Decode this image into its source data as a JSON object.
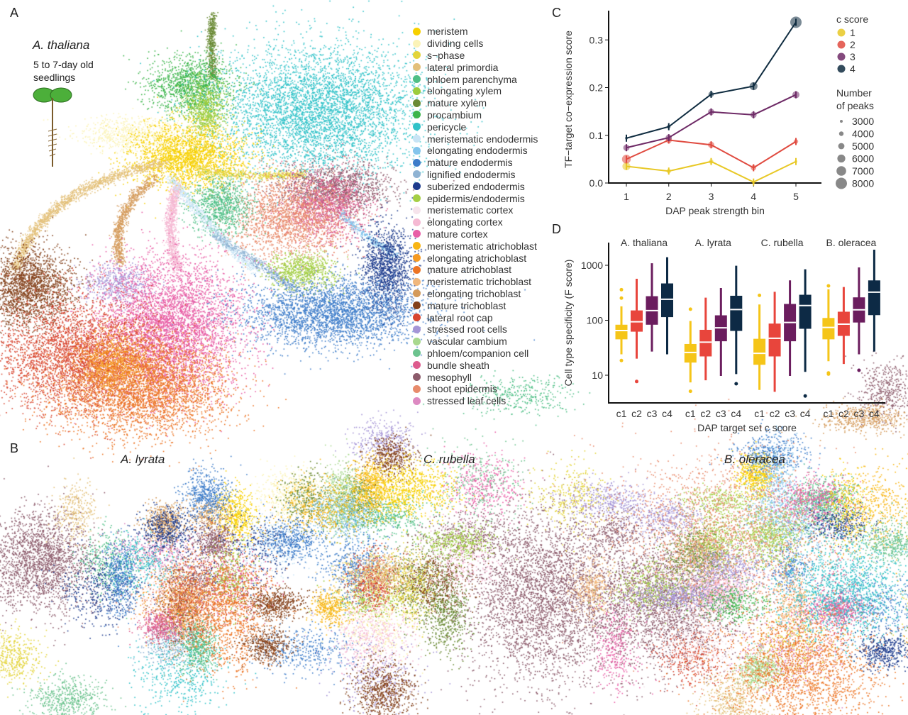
{
  "panel_labels": {
    "a": "A",
    "b": "B",
    "c": "C",
    "d": "D"
  },
  "panel_a": {
    "species": "A. thaliana",
    "subtitle_line1": "5 to 7-day old",
    "subtitle_line2": "seedlings"
  },
  "legend": [
    {
      "label": "meristem",
      "color": "#f7d000"
    },
    {
      "label": "dividing cells",
      "color": "#fbf3b8"
    },
    {
      "label": "s−phase",
      "color": "#e3d43a"
    },
    {
      "label": "lateral primordia",
      "color": "#e3c07a"
    },
    {
      "label": "phloem parenchyma",
      "color": "#4fbf86"
    },
    {
      "label": "elongating xylem",
      "color": "#9ccc3c"
    },
    {
      "label": "mature xylem",
      "color": "#6a8a35"
    },
    {
      "label": "procambium",
      "color": "#3bb54a"
    },
    {
      "label": "pericycle",
      "color": "#30c2c8"
    },
    {
      "label": "meristematic endodermis",
      "color": "#c8e4f5"
    },
    {
      "label": "elongating endodermis",
      "color": "#84c5ec"
    },
    {
      "label": "mature endodermis",
      "color": "#3d7cc9"
    },
    {
      "label": "lignified endodermis",
      "color": "#8fb3d3"
    },
    {
      "label": "suberized endodermis",
      "color": "#1c3a8c"
    },
    {
      "label": "epidermis/endodermis",
      "color": "#a5cf45"
    },
    {
      "label": "meristematic cortex",
      "color": "#f6e4ec"
    },
    {
      "label": "elongating cortex",
      "color": "#f5b9d3"
    },
    {
      "label": "mature cortex",
      "color": "#e85fa6"
    },
    {
      "label": "meristematic atrichoblast",
      "color": "#f8b514"
    },
    {
      "label": "elongating atrichoblast",
      "color": "#f59a22"
    },
    {
      "label": "mature atrichoblast",
      "color": "#ec7424"
    },
    {
      "label": "meristematic trichoblast",
      "color": "#f0b77c"
    },
    {
      "label": "elongating trichoblast",
      "color": "#d49a5a"
    },
    {
      "label": "mature trichoblast",
      "color": "#83401a"
    },
    {
      "label": "lateral root cap",
      "color": "#d8452f"
    },
    {
      "label": "stressed root cells",
      "color": "#a595d6"
    },
    {
      "label": "vascular cambium",
      "color": "#a8d88e"
    },
    {
      "label": "phloem/companion cell",
      "color": "#6cc38e"
    },
    {
      "label": "bundle sheath",
      "color": "#dd5c8e"
    },
    {
      "label": "mesophyll",
      "color": "#8c5b6b"
    },
    {
      "label": "shoot epidermis",
      "color": "#e88b6c"
    },
    {
      "label": "stressed leaf cells",
      "color": "#dd8ac2"
    }
  ],
  "panel_b": {
    "species": [
      "A. lyrata",
      "C. rubella",
      "B. oleracea"
    ]
  },
  "chart_data": [
    {
      "type": "line",
      "panel": "C",
      "xlabel": "DAP peak strength bin",
      "ylabel": "TF−target co−expression score",
      "x": [
        1,
        2,
        3,
        4,
        5
      ],
      "ylim": [
        0,
        0.35
      ],
      "yticks": [
        "0.0",
        "0.1",
        "0.2",
        "0.3"
      ],
      "xticks": [
        "1",
        "2",
        "3",
        "4",
        "5"
      ],
      "legend_color_title": "c score",
      "legend_size_title": [
        "Number",
        "of peaks"
      ],
      "size_legend": [
        3000,
        4000,
        5000,
        6000,
        7000,
        8000
      ],
      "series": [
        {
          "name": "1",
          "color": "#e8c825",
          "values": [
            0.035,
            0.025,
            0.045,
            0.002,
            0.045
          ],
          "peaks": [
            6000,
            4000,
            4000,
            3500,
            3000
          ]
        },
        {
          "name": "2",
          "color": "#e04a3f",
          "values": [
            0.05,
            0.09,
            0.08,
            0.032,
            0.087
          ],
          "peaks": [
            6500,
            5000,
            5000,
            4500,
            4000
          ]
        },
        {
          "name": "3",
          "color": "#6e2a66",
          "values": [
            0.074,
            0.095,
            0.149,
            0.143,
            0.185
          ],
          "peaks": [
            5000,
            5000,
            5000,
            5000,
            5500
          ]
        },
        {
          "name": "4",
          "color": "#0f2c40",
          "values": [
            0.094,
            0.118,
            0.186,
            0.203,
            0.337
          ],
          "peaks": [
            3000,
            3500,
            4500,
            6000,
            8000
          ]
        }
      ]
    },
    {
      "type": "box",
      "panel": "D",
      "xlabel": "DAP target set c score",
      "ylabel": "Cell type specificity (F score)",
      "yscale": "log",
      "ylim": [
        3,
        2600
      ],
      "yticks": [
        "10",
        "100",
        "1000"
      ],
      "categories": [
        "c1",
        "c2",
        "c3",
        "c4"
      ],
      "colors": [
        "#f5c518",
        "#e8453c",
        "#6b1d5e",
        "#0d2a45"
      ],
      "groups": [
        {
          "name": "A. thaliana",
          "boxes": [
            {
              "lo": 24,
              "q1": 45,
              "med": 65,
              "q3": 83,
              "hi": 179,
              "out": [
                360,
                253,
                18.5
              ]
            },
            {
              "lo": 20,
              "q1": 62,
              "med": 94,
              "q3": 151,
              "hi": 569,
              "out": [
                7.7
              ]
            },
            {
              "lo": 27,
              "q1": 83,
              "med": 150,
              "q3": 274,
              "hi": 1090,
              "out": []
            },
            {
              "lo": 24,
              "q1": 114,
              "med": 241,
              "q3": 468,
              "hi": 1400,
              "out": []
            }
          ]
        },
        {
          "name": "A. lyrata",
          "boxes": [
            {
              "lo": 7.4,
              "q1": 17,
              "med": 26,
              "q3": 37,
              "hi": 97,
              "out": [
                159,
                5.1
              ]
            },
            {
              "lo": 8.1,
              "q1": 22,
              "med": 40,
              "q3": 67,
              "hi": 258,
              "out": []
            },
            {
              "lo": 9.7,
              "q1": 41.5,
              "med": 73,
              "q3": 123,
              "hi": 387,
              "out": []
            },
            {
              "lo": 10.5,
              "q1": 64,
              "med": 157,
              "q3": 279,
              "hi": 980,
              "out": [
                7
              ]
            }
          ]
        },
        {
          "name": "C. rubella",
          "boxes": [
            {
              "lo": 5.4,
              "q1": 15.5,
              "med": 25,
              "q3": 46,
              "hi": 194,
              "out": [
                284
              ]
            },
            {
              "lo": 5,
              "q1": 22,
              "med": 47,
              "q3": 87,
              "hi": 330,
              "out": []
            },
            {
              "lo": 9.7,
              "q1": 41.5,
              "med": 91,
              "q3": 198,
              "hi": 531,
              "out": []
            },
            {
              "lo": 11.5,
              "q1": 70,
              "med": 185,
              "q3": 291,
              "hi": 845,
              "out": [
                4.2
              ]
            }
          ]
        },
        {
          "name": "B. oleracea",
          "boxes": [
            {
              "lo": 18,
              "q1": 45,
              "med": 74,
              "q3": 110,
              "hi": 365,
              "out": [
                422,
                11,
                10.5
              ]
            },
            {
              "lo": 16,
              "q1": 52,
              "med": 85,
              "q3": 143,
              "hi": 402,
              "out": []
            },
            {
              "lo": 24,
              "q1": 91,
              "med": 155,
              "q3": 261,
              "hi": 914,
              "out": [
                12.3
              ]
            },
            {
              "lo": 27,
              "q1": 124,
              "med": 324,
              "q3": 531,
              "hi": 1920,
              "out": []
            }
          ]
        }
      ]
    }
  ]
}
